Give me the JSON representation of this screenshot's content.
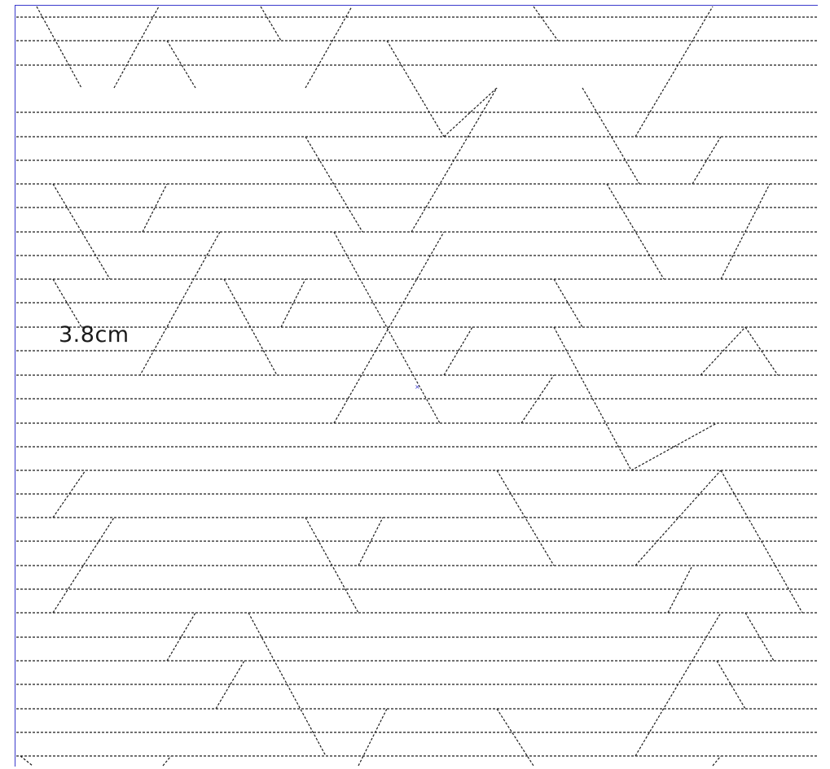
{
  "measurement": {
    "label": "3.8cm"
  },
  "marks": {
    "center": "×"
  },
  "colors": {
    "stroke": "#1a1a1a",
    "frame": "#3a3acc",
    "background": "#ffffff"
  },
  "pattern": {
    "style": "dashed",
    "description_lines": 32
  }
}
